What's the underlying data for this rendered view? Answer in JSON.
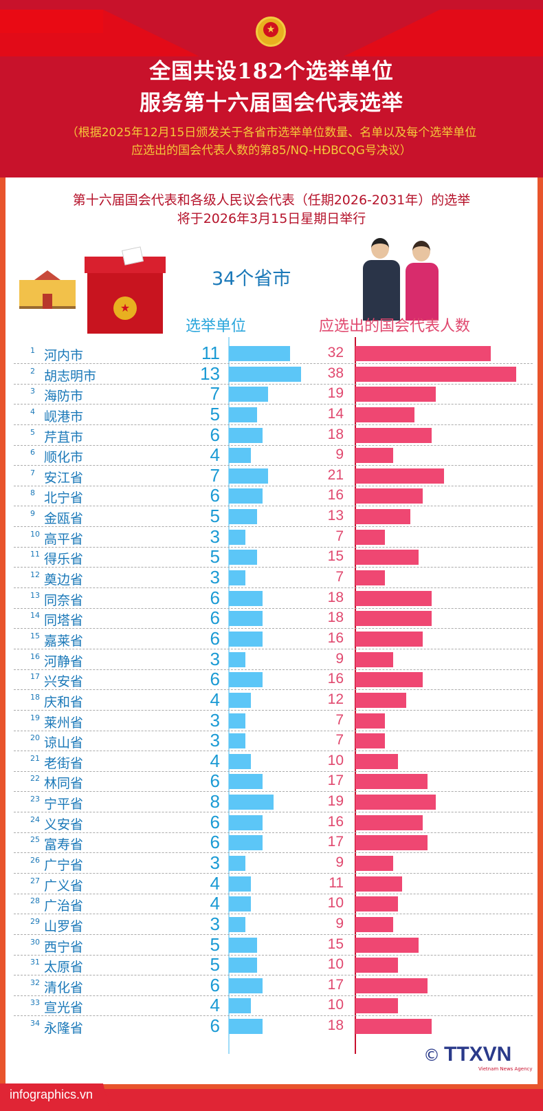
{
  "header": {
    "title_line1": "全国共设182个选举单位",
    "title_line2": "服务第十六届国会代表选举",
    "subtitle_line1": "（根据2025年12月15日颁发关于各省市选举单位数量、名单以及每个选举单位",
    "subtitle_line2": "应选出的国会代表人数的第85/NQ-HĐBCQG号决议）"
  },
  "intro": {
    "line1": "第十六届国会代表和各级人民议会代表（任期2026-2031年）的选举",
    "line2": "将于2026年3月15日星期日举行"
  },
  "colors": {
    "header_red": "#c8122b",
    "blue": "#5cc6f7",
    "pink": "#ef4772",
    "frame": "#e8542c"
  },
  "footer": {
    "site": "infographics.vn",
    "agency": "TTXVN",
    "agency_sub": "Vietnam News Agency",
    "copyright": "©"
  },
  "chart_data": {
    "type": "bar",
    "title": "34个省市",
    "series": [
      {
        "name": "选举单位",
        "values": [
          11,
          13,
          7,
          5,
          6,
          4,
          7,
          6,
          5,
          3,
          5,
          3,
          6,
          6,
          6,
          3,
          6,
          4,
          3,
          3,
          4,
          6,
          8,
          6,
          6,
          3,
          4,
          4,
          3,
          5,
          5,
          6,
          4,
          6
        ]
      },
      {
        "name": "应选出的国会代表人数",
        "values": [
          32,
          38,
          19,
          14,
          18,
          9,
          21,
          16,
          13,
          7,
          15,
          7,
          18,
          18,
          16,
          9,
          16,
          12,
          7,
          7,
          10,
          17,
          19,
          16,
          17,
          9,
          11,
          10,
          9,
          15,
          10,
          17,
          10,
          18
        ]
      }
    ],
    "categories": [
      "河内市",
      "胡志明市",
      "海防市",
      "岘港市",
      "芹苴市",
      "顺化市",
      "安江省",
      "北宁省",
      "金瓯省",
      "高平省",
      "得乐省",
      "奠边省",
      "同奈省",
      "同塔省",
      "嘉莱省",
      "河静省",
      "兴安省",
      "庆和省",
      "莱州省",
      "谅山省",
      "老街省",
      "林同省",
      "宁平省",
      "义安省",
      "富寿省",
      "广宁省",
      "广义省",
      "广治省",
      "山罗省",
      "西宁省",
      "太原省",
      "清化省",
      "宣光省",
      "永隆省"
    ],
    "orientation": "horizontal"
  }
}
